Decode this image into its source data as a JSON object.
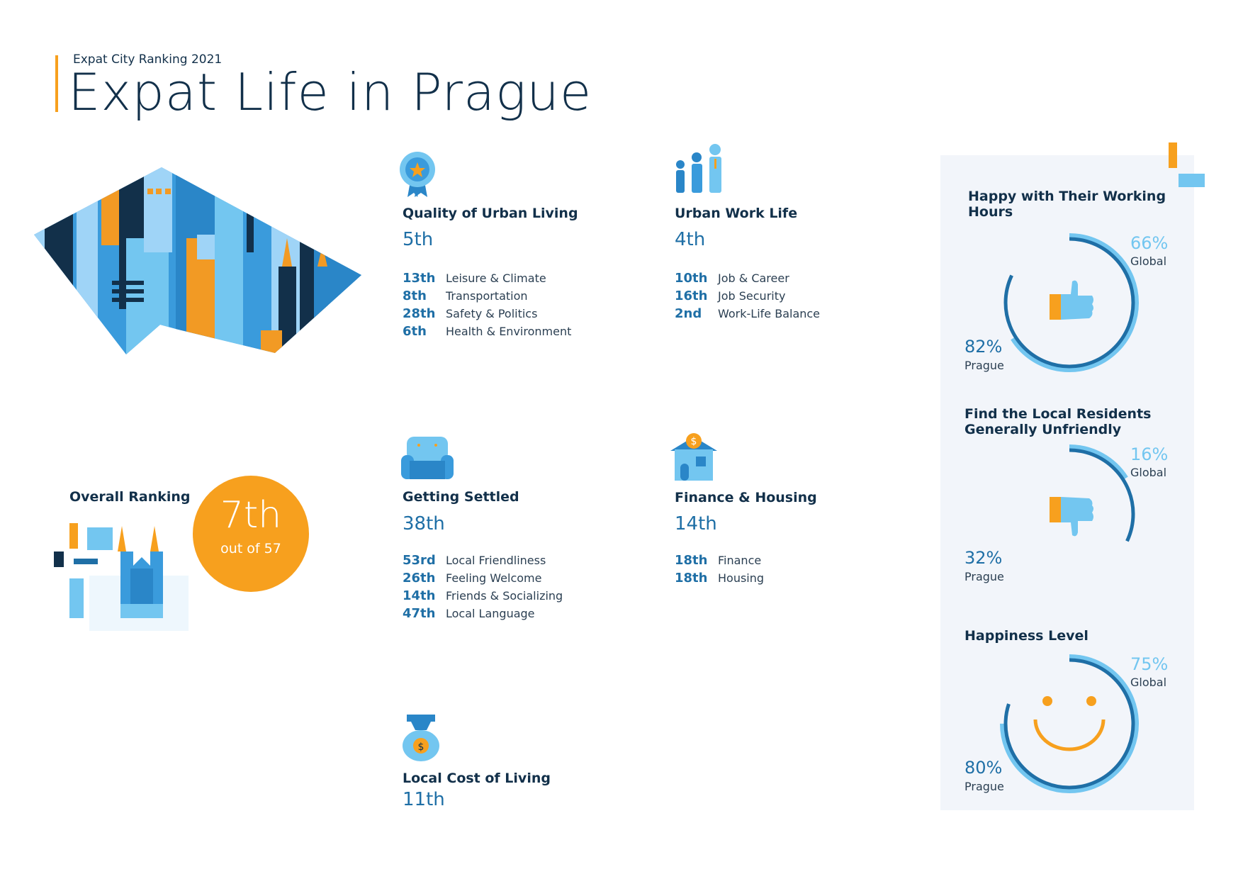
{
  "header": {
    "subtitle": "Expat City Ranking 2021",
    "title": "Expat Life in Prague"
  },
  "overall": {
    "label": "Overall Ranking",
    "rank": "7th",
    "out_of": "out of 57"
  },
  "categories": [
    {
      "title": "Quality of Urban Living",
      "rank": "5th",
      "icon": "award-ribbon-icon",
      "items": [
        {
          "rank": "13th",
          "label": "Leisure & Climate"
        },
        {
          "rank": "8th",
          "label": "Transportation"
        },
        {
          "rank": "28th",
          "label": "Safety & Politics"
        },
        {
          "rank": "6th",
          "label": "Health & Environment"
        }
      ]
    },
    {
      "title": "Urban Work Life",
      "rank": "4th",
      "icon": "people-icon",
      "items": [
        {
          "rank": "10th",
          "label": "Job & Career"
        },
        {
          "rank": "16th",
          "label": "Job Security"
        },
        {
          "rank": "2nd",
          "label": "Work-Life Balance"
        }
      ]
    },
    {
      "title": "Getting Settled",
      "rank": "38th",
      "icon": "armchair-icon",
      "items": [
        {
          "rank": "53rd",
          "label": "Local Friendliness"
        },
        {
          "rank": "26th",
          "label": "Feeling Welcome"
        },
        {
          "rank": "14th",
          "label": "Friends & Socializing"
        },
        {
          "rank": "47th",
          "label": "Local Language"
        }
      ]
    },
    {
      "title": "Finance & Housing",
      "rank": "14th",
      "icon": "house-coin-icon",
      "items": [
        {
          "rank": "18th",
          "label": "Finance"
        },
        {
          "rank": "18th",
          "label": "Housing"
        }
      ]
    },
    {
      "title": "Local Cost of Living",
      "rank": "11th",
      "icon": "money-bag-icon",
      "items": []
    }
  ],
  "gauges": [
    {
      "title": "Happy with Their Working Hours",
      "global": "66%",
      "global_value": 66,
      "global_label": "Global",
      "prague": "82%",
      "prague_value": 82,
      "prague_label": "Prague",
      "icon": "thumbs-up-icon"
    },
    {
      "title": "Find the Local Residents Generally Unfriendly",
      "global": "16%",
      "global_value": 16,
      "global_label": "Global",
      "prague": "32%",
      "prague_value": 32,
      "prague_label": "Prague",
      "icon": "thumbs-down-icon"
    },
    {
      "title": "Happiness Level",
      "global": "75%",
      "global_value": 75,
      "global_label": "Global",
      "prague": "80%",
      "prague_value": 80,
      "prague_label": "Prague",
      "icon": "smiley-icon"
    }
  ],
  "colors": {
    "navy": "#12304a",
    "blue": "#1f6fa6",
    "light_blue": "#73c6f0",
    "orange": "#f7a01e",
    "panel": "#f2f5fa"
  }
}
